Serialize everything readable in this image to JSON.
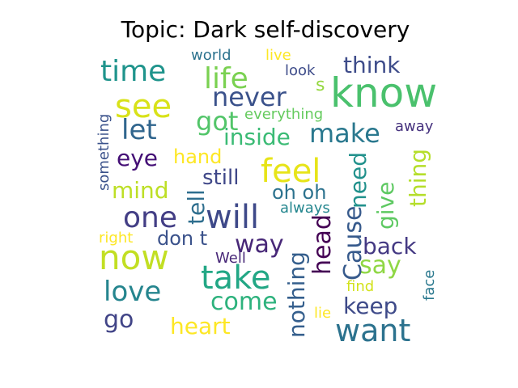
{
  "title": "Topic: Dark self-discovery",
  "palette": {
    "background": "#ffffff",
    "title": "#000000"
  },
  "words": [
    {
      "text": "know",
      "color": "#4ac16d"
    },
    {
      "text": "see",
      "color": "#d8e219"
    },
    {
      "text": "now",
      "color": "#c2df23"
    },
    {
      "text": "feel",
      "color": "#e7e419"
    },
    {
      "text": "will",
      "color": "#3e4989"
    },
    {
      "text": "take",
      "color": "#22a785"
    },
    {
      "text": "want",
      "color": "#2c728e"
    },
    {
      "text": "time",
      "color": "#1f948c"
    },
    {
      "text": "life",
      "color": "#7ad151"
    },
    {
      "text": "one",
      "color": "#433e85"
    },
    {
      "text": "love",
      "color": "#25858e"
    },
    {
      "text": "let",
      "color": "#31668e"
    },
    {
      "text": "never",
      "color": "#3b528b"
    },
    {
      "text": "make",
      "color": "#2a788e"
    },
    {
      "text": "got",
      "color": "#52c569"
    },
    {
      "text": "way",
      "color": "#482878"
    },
    {
      "text": "say",
      "color": "#8fd744"
    },
    {
      "text": "come",
      "color": "#2db27d"
    },
    {
      "text": "head",
      "color": "#440154"
    },
    {
      "text": "Cause",
      "color": "#375a8c"
    },
    {
      "text": "nothing",
      "color": "#355f8d"
    },
    {
      "text": "heart",
      "color": "#fde725"
    },
    {
      "text": "keep",
      "color": "#3e4a89"
    },
    {
      "text": "inside",
      "color": "#3bbb75"
    },
    {
      "text": "think",
      "color": "#3e4c8a"
    },
    {
      "text": "back",
      "color": "#443983"
    },
    {
      "text": "eye",
      "color": "#440f76"
    },
    {
      "text": "mind",
      "color": "#bddf26"
    },
    {
      "text": "go",
      "color": "#414487"
    },
    {
      "text": "give",
      "color": "#5ec962"
    },
    {
      "text": "thing",
      "color": "#b5de2b"
    },
    {
      "text": "need",
      "color": "#21918c"
    },
    {
      "text": "tell",
      "color": "#2e6e8e"
    },
    {
      "text": "still",
      "color": "#3f4788"
    },
    {
      "text": "oh oh",
      "color": "#2c728e"
    },
    {
      "text": "don t",
      "color": "#3b528b"
    },
    {
      "text": "hand",
      "color": "#fde725"
    },
    {
      "text": "everything",
      "color": "#65cb5e"
    },
    {
      "text": "s",
      "color": "#95d840"
    },
    {
      "text": "world",
      "color": "#2c728e"
    },
    {
      "text": "live",
      "color": "#fde725"
    },
    {
      "text": "look",
      "color": "#3e4c8a"
    },
    {
      "text": "away",
      "color": "#46327e"
    },
    {
      "text": "something",
      "color": "#3b528b"
    },
    {
      "text": "always",
      "color": "#24868e"
    },
    {
      "text": "right",
      "color": "#fde725"
    },
    {
      "text": "Well",
      "color": "#482878"
    },
    {
      "text": "find",
      "color": "#d2e21b"
    },
    {
      "text": "face",
      "color": "#2a788e"
    },
    {
      "text": "lie",
      "color": "#fde725"
    }
  ]
}
